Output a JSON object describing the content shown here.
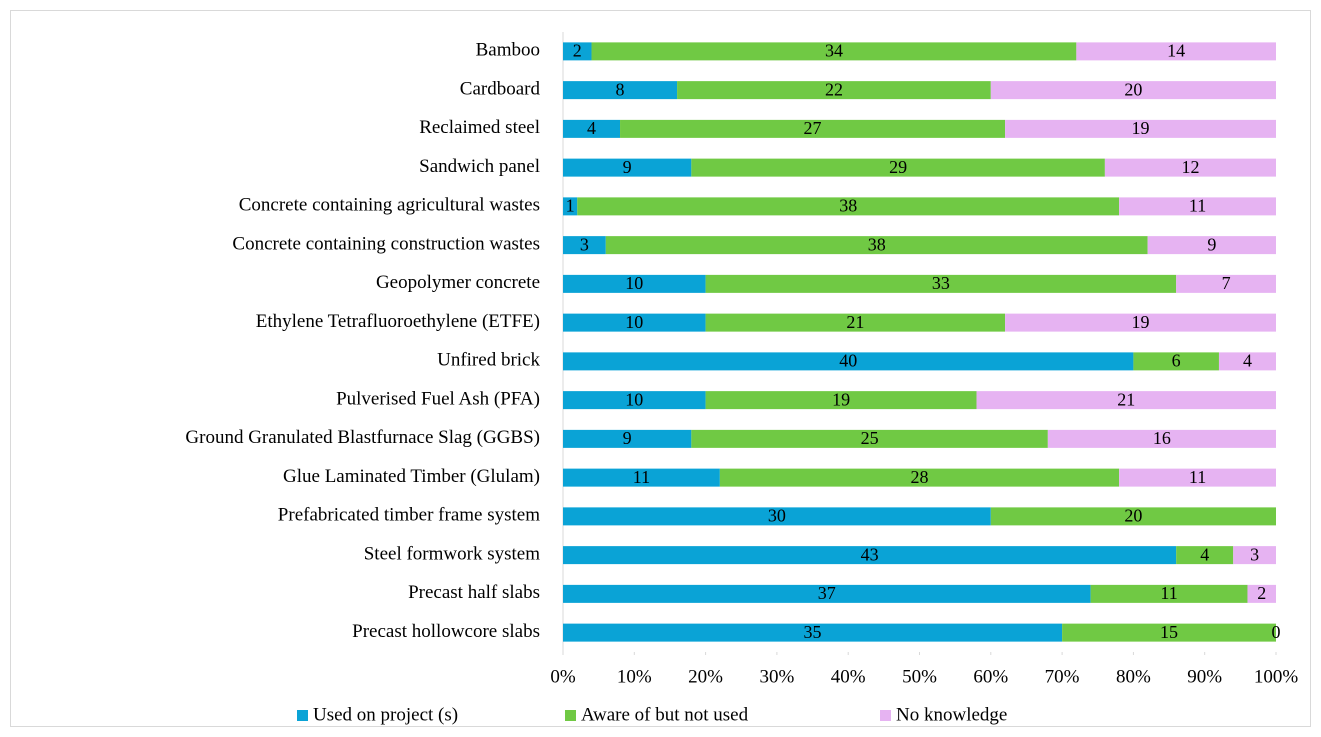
{
  "chart_data": {
    "type": "bar",
    "orientation": "horizontal",
    "stack": "percent",
    "categories": [
      "Bamboo",
      "Cardboard",
      "Reclaimed steel",
      "Sandwich panel",
      "Concrete containing agricultural wastes",
      "Concrete containing construction wastes",
      "Geopolymer concrete",
      "Ethylene Tetrafluoroethylene (ETFE)",
      "Unfired brick",
      "Pulverised Fuel Ash (PFA)",
      "Ground Granulated Blastfurnace Slag (GGBS)",
      "Glue Laminated Timber (Glulam)",
      "Prefabricated timber frame system",
      "Steel formwork system",
      "Precast half slabs",
      "Precast hollowcore slabs"
    ],
    "series": [
      {
        "name": "Used on project (s)",
        "color": "#0aa3d6",
        "values": [
          2,
          8,
          4,
          9,
          1,
          3,
          10,
          10,
          40,
          10,
          9,
          11,
          30,
          43,
          37,
          35
        ]
      },
      {
        "name": "Aware of but not used",
        "color": "#70c944",
        "values": [
          34,
          22,
          27,
          29,
          38,
          38,
          33,
          21,
          6,
          19,
          25,
          28,
          20,
          4,
          11,
          15
        ]
      },
      {
        "name": "No knowledge",
        "color": "#e6b3f2",
        "values": [
          14,
          20,
          19,
          12,
          11,
          9,
          7,
          19,
          4,
          21,
          16,
          11,
          null,
          3,
          2,
          0
        ]
      }
    ],
    "xlim": [
      0,
      100
    ],
    "xticks": [
      {
        "value": 0,
        "label": "0%"
      },
      {
        "value": 10,
        "label": "10%"
      },
      {
        "value": 20,
        "label": "20%"
      },
      {
        "value": 30,
        "label": "30%"
      },
      {
        "value": 40,
        "label": "40%"
      },
      {
        "value": 50,
        "label": "50%"
      },
      {
        "value": 60,
        "label": "60%"
      },
      {
        "value": 70,
        "label": "70%"
      },
      {
        "value": 80,
        "label": "80%"
      },
      {
        "value": 90,
        "label": "90%"
      },
      {
        "value": 100,
        "label": "100%"
      }
    ],
    "legend": "bottom"
  }
}
